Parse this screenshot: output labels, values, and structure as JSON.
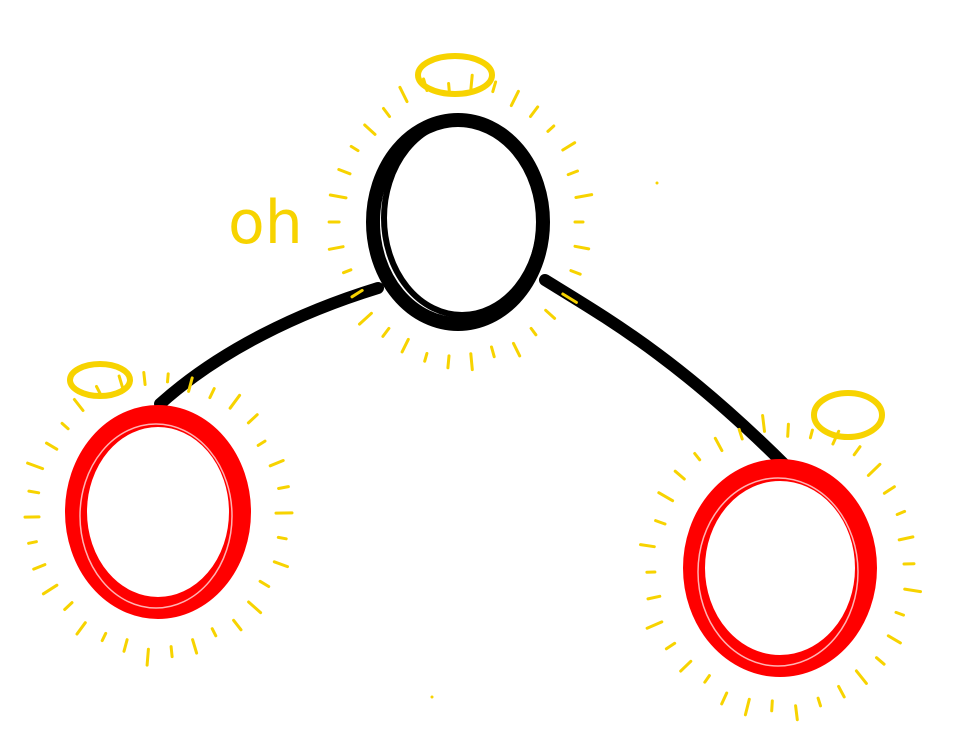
{
  "diagram": {
    "label": "oh",
    "colors": {
      "background": "#ffffff",
      "center_node": "#000000",
      "side_nodes": "#ff0000",
      "glow": "#f7d300"
    },
    "nodes": [
      {
        "id": "center",
        "color": "black",
        "has_halo": true,
        "has_glow": true
      },
      {
        "id": "left",
        "color": "red",
        "has_halo": true,
        "has_glow": true
      },
      {
        "id": "right",
        "color": "red",
        "has_halo": true,
        "has_glow": true
      }
    ],
    "edges": [
      {
        "from": "center",
        "to": "left"
      },
      {
        "from": "center",
        "to": "right"
      }
    ]
  }
}
